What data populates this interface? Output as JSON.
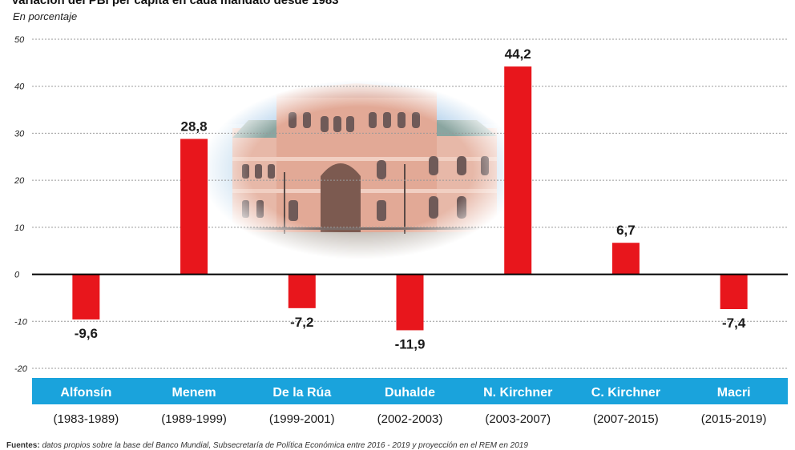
{
  "chart_data": {
    "type": "bar",
    "title": "Variación del PBI per cápita en cada mandato desde 1983",
    "subtitle": "En porcentaje",
    "categories": [
      "Alfonsín",
      "Menem",
      "De la Rúa",
      "Duhalde",
      "N. Kirchner",
      "C. Kirchner",
      "Macri"
    ],
    "periods": [
      "(1983-1989)",
      "(1989-1999)",
      "(1999-2001)",
      "(2002-2003)",
      "(2003-2007)",
      "(2007-2015)",
      "(2015-2019)"
    ],
    "values": [
      -9.6,
      28.8,
      -7.2,
      -11.9,
      44.2,
      6.7,
      -7.4
    ],
    "value_labels": [
      "-9,6",
      "28,8",
      "-7,2",
      "-11,9",
      "44,2",
      "6,7",
      "-7,4"
    ],
    "y_ticks": [
      "50",
      "40",
      "30",
      "20",
      "10",
      "0",
      "-10",
      "-20"
    ],
    "y_tick_values": [
      50,
      40,
      30,
      20,
      10,
      0,
      -10,
      -20
    ],
    "ylim": [
      -20,
      50
    ],
    "grid": "horizontal dashed",
    "legend": "none",
    "colors": {
      "bar": "#e8161c",
      "name_band": "#1aa3dc",
      "grid": "#999999",
      "baseline": "#000000"
    }
  },
  "source": {
    "label": "Fuentes:",
    "text": "datos propios sobre la base del Banco Mundial, Subsecretaría de Política Económica entre 2016 - 2019 y proyección en el REM en 2019"
  },
  "background_image": "casa-rosada-photo"
}
